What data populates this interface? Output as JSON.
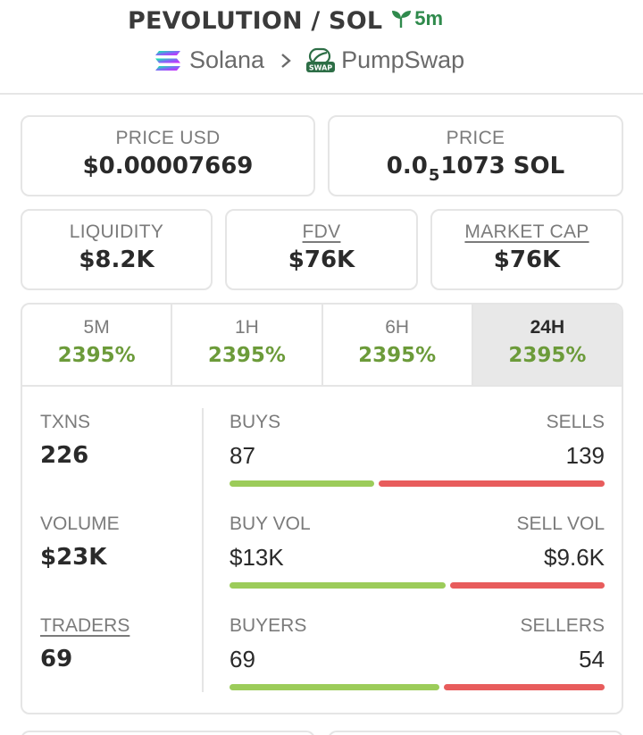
{
  "header": {
    "pair": "PEVOLUTION / SOL",
    "age": "5m",
    "chain": "Solana",
    "dex": "PumpSwap",
    "icons": {
      "age": "seedling-icon",
      "chain": "solana-icon",
      "separator": "chevron-right-icon",
      "dex": "pumpswap-icon"
    }
  },
  "price_usd": {
    "label": "PRICE USD",
    "value": "$0.00007669"
  },
  "price_native": {
    "label": "PRICE",
    "prefix": "0.0",
    "subscript": "5",
    "suffix": "1073 SOL"
  },
  "liquidity": {
    "label": "LIQUIDITY",
    "value": "$8.2K"
  },
  "fdv": {
    "label": "FDV",
    "value": "$76K"
  },
  "market_cap": {
    "label": "MARKET CAP",
    "value": "$76K"
  },
  "tabs": [
    {
      "label": "5M",
      "change": "2395%"
    },
    {
      "label": "1H",
      "change": "2395%"
    },
    {
      "label": "6H",
      "change": "2395%"
    },
    {
      "label": "24H",
      "change": "2395%",
      "active": true
    }
  ],
  "stats": {
    "txns": {
      "label": "TXNS",
      "value": "226"
    },
    "volume": {
      "label": "VOLUME",
      "value": "$23K"
    },
    "traders": {
      "label": "TRADERS",
      "value": "69"
    }
  },
  "splits": [
    {
      "left_label": "BUYS",
      "right_label": "SELLS",
      "left_value": "87",
      "right_value": "139",
      "buy_fraction": 0.385
    },
    {
      "left_label": "BUY VOL",
      "right_label": "SELL VOL",
      "left_value": "$13K",
      "right_value": "$9.6K",
      "buy_fraction": 0.575
    },
    {
      "left_label": "BUYERS",
      "right_label": "SELLERS",
      "left_value": "69",
      "right_value": "54",
      "buy_fraction": 0.56
    }
  ],
  "colors": {
    "positive": "#6c9b3a",
    "buy_bar": "#9ccc5a",
    "sell_bar": "#e85c5c",
    "age": "#2f8a4c"
  }
}
